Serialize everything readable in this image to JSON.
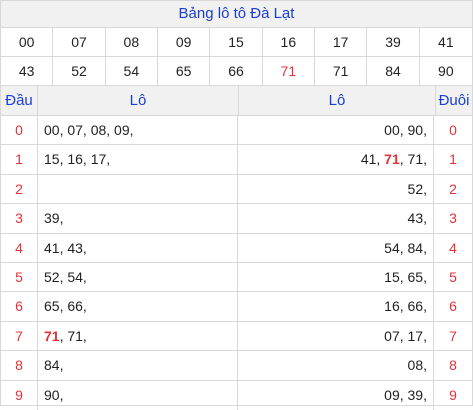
{
  "title": "Bảng lô tô Đà Lạt",
  "numbers": [
    {
      "text": "00",
      "hl": false
    },
    {
      "text": "07",
      "hl": false
    },
    {
      "text": "08",
      "hl": false
    },
    {
      "text": "09",
      "hl": false
    },
    {
      "text": "15",
      "hl": false
    },
    {
      "text": "16",
      "hl": false
    },
    {
      "text": "17",
      "hl": false
    },
    {
      "text": "39",
      "hl": false
    },
    {
      "text": "41",
      "hl": false
    },
    {
      "text": "43",
      "hl": false
    },
    {
      "text": "52",
      "hl": false
    },
    {
      "text": "54",
      "hl": false
    },
    {
      "text": "65",
      "hl": false
    },
    {
      "text": "66",
      "hl": false
    },
    {
      "text": "71",
      "hl": true
    },
    {
      "text": "71",
      "hl": false
    },
    {
      "text": "84",
      "hl": false
    },
    {
      "text": "90",
      "hl": false
    }
  ],
  "headers": {
    "dau": "Đầu",
    "lo_left": "Lô",
    "lo_right": "Lô",
    "duoi": "Đuôi"
  },
  "rows": [
    {
      "idx": "0",
      "left": [
        {
          "t": "00, 07, 08, 09,",
          "hl": false
        }
      ],
      "right": [
        {
          "t": "00, 90,",
          "hl": false
        }
      ],
      "tail": "0"
    },
    {
      "idx": "1",
      "left": [
        {
          "t": "15, 16, 17,",
          "hl": false
        }
      ],
      "right": [
        {
          "t": "41, ",
          "hl": false
        },
        {
          "t": "71",
          "hl": true
        },
        {
          "t": ", 71,",
          "hl": false
        }
      ],
      "tail": "1"
    },
    {
      "idx": "2",
      "left": [],
      "right": [
        {
          "t": "52,",
          "hl": false
        }
      ],
      "tail": "2"
    },
    {
      "idx": "3",
      "left": [
        {
          "t": "39,",
          "hl": false
        }
      ],
      "right": [
        {
          "t": "43,",
          "hl": false
        }
      ],
      "tail": "3"
    },
    {
      "idx": "4",
      "left": [
        {
          "t": "41, 43,",
          "hl": false
        }
      ],
      "right": [
        {
          "t": "54, 84,",
          "hl": false
        }
      ],
      "tail": "4"
    },
    {
      "idx": "5",
      "left": [
        {
          "t": "52, 54,",
          "hl": false
        }
      ],
      "right": [
        {
          "t": "15, 65,",
          "hl": false
        }
      ],
      "tail": "5"
    },
    {
      "idx": "6",
      "left": [
        {
          "t": "65, 66,",
          "hl": false
        }
      ],
      "right": [
        {
          "t": "16, 66,",
          "hl": false
        }
      ],
      "tail": "6"
    },
    {
      "idx": "7",
      "left": [
        {
          "t": "71",
          "hl": true
        },
        {
          "t": ", 71,",
          "hl": false
        }
      ],
      "right": [
        {
          "t": "07, 17,",
          "hl": false
        }
      ],
      "tail": "7"
    },
    {
      "idx": "8",
      "left": [
        {
          "t": "84,",
          "hl": false
        }
      ],
      "right": [
        {
          "t": "08,",
          "hl": false
        }
      ],
      "tail": "8"
    },
    {
      "idx": "9",
      "left": [
        {
          "t": "90,",
          "hl": false
        }
      ],
      "right": [
        {
          "t": "09, 39,",
          "hl": false
        }
      ],
      "tail": "9"
    }
  ],
  "colors": {
    "accent": "#1a3ecf",
    "highlight": "#e0343a",
    "header_bg": "#f1f1f1",
    "border": "#d8d8d8"
  }
}
